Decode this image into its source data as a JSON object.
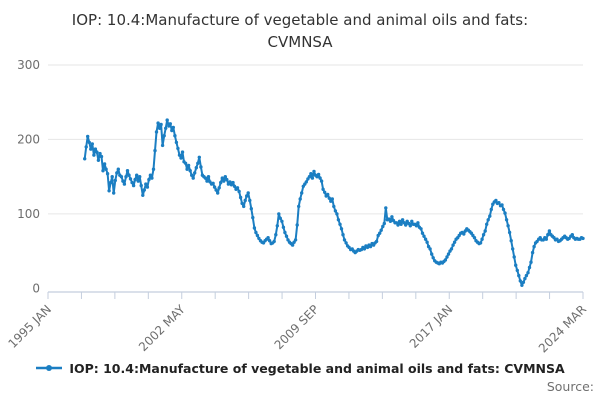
{
  "title": {
    "line1": "IOP: 10.4:Manufacture of vegetable and animal oils and fats:",
    "line2": "CVMNSA"
  },
  "legend": {
    "label": "IOP: 10.4:Manufacture of vegetable and animal oils and fats: CVMNSA",
    "marker": "line-with-dot"
  },
  "source": {
    "label": "Source:"
  },
  "colors": {
    "line": "#1b7ec2",
    "grid": "#e6e6e6",
    "axis": "#c4cede",
    "tick_label": "#6e6e6e",
    "background": "#ffffff"
  },
  "chart_data": {
    "type": "line",
    "title": "IOP: 10.4:Manufacture of vegetable and animal oils and fats: CVMNSA",
    "xlabel": "",
    "ylabel": "",
    "grid": "horizontal",
    "legend_position": "bottom",
    "x_axis": {
      "start_label": "1995 JAN",
      "end_label": "2024 MAR",
      "tick_labels": [
        "1995 JAN",
        "2002 MAY",
        "2009 SEP",
        "2017 JAN",
        "2024 MAR"
      ],
      "minor_tick_intervals": 16,
      "labels_every_nth_tick": 4,
      "axis_total_months": 350
    },
    "y_axis": {
      "ticks": [
        0,
        100,
        200,
        300
      ],
      "range": [
        0,
        300
      ]
    },
    "series": [
      {
        "name": "IOP: 10.4:Manufacture of vegetable and animal oils and fats: CVMNSA",
        "frequency": "monthly",
        "start": "1997 JAN",
        "end": "2024 MAR",
        "start_offset_months": 24,
        "marker": "dot",
        "values": [
          174,
          190,
          204,
          196,
          187,
          194,
          179,
          187,
          183,
          172,
          181,
          177,
          158,
          167,
          160,
          154,
          131,
          142,
          150,
          128,
          145,
          155,
          160,
          152,
          150,
          144,
          140,
          150,
          158,
          152,
          147,
          142,
          138,
          146,
          152,
          144,
          150,
          138,
          125,
          132,
          140,
          136,
          146,
          152,
          148,
          160,
          185,
          210,
          222,
          215,
          220,
          192,
          205,
          215,
          226,
          218,
          221,
          212,
          216,
          205,
          196,
          188,
          179,
          175,
          183,
          170,
          168,
          160,
          165,
          158,
          152,
          148,
          155,
          162,
          168,
          176,
          163,
          152,
          150,
          148,
          144,
          150,
          143,
          140,
          141,
          136,
          132,
          128,
          135,
          142,
          148,
          144,
          150,
          146,
          140,
          143,
          139,
          142,
          137,
          133,
          135,
          130,
          122,
          114,
          110,
          118,
          124,
          128,
          118,
          107,
          95,
          81,
          75,
          71,
          67,
          64,
          62,
          61,
          64,
          66,
          68,
          64,
          60,
          61,
          63,
          72,
          84,
          100,
          94,
          90,
          82,
          75,
          70,
          65,
          62,
          60,
          58,
          62,
          65,
          85,
          110,
          120,
          128,
          137,
          140,
          143,
          147,
          150,
          154,
          148,
          157,
          152,
          150,
          153,
          148,
          144,
          133,
          129,
          124,
          126,
          121,
          117,
          120,
          110,
          104,
          100,
          92,
          86,
          80,
          72,
          65,
          61,
          57,
          55,
          52,
          53,
          50,
          48,
          50,
          52,
          51,
          52,
          55,
          53,
          57,
          55,
          58,
          56,
          60,
          58,
          61,
          63,
          71,
          74,
          78,
          83,
          87,
          108,
          92,
          93,
          90,
          96,
          91,
          88,
          88,
          85,
          90,
          86,
          92,
          88,
          85,
          90,
          87,
          84,
          90,
          86,
          86,
          84,
          88,
          82,
          80,
          74,
          70,
          66,
          62,
          56,
          53,
          46,
          41,
          37,
          35,
          34,
          33,
          35,
          34,
          36,
          38,
          42,
          46,
          50,
          53,
          58,
          62,
          66,
          68,
          71,
          74,
          75,
          73,
          77,
          80,
          78,
          76,
          74,
          71,
          68,
          64,
          62,
          60,
          61,
          66,
          72,
          77,
          86,
          92,
          97,
          106,
          113,
          116,
          118,
          114,
          115,
          111,
          112,
          106,
          101,
          92,
          84,
          75,
          64,
          53,
          42,
          31,
          24,
          17,
          10,
          4,
          8,
          13,
          17,
          21,
          28,
          35,
          48,
          56,
          61,
          63,
          66,
          68,
          65,
          65,
          68,
          66,
          72,
          77,
          72,
          70,
          68,
          65,
          66,
          63,
          64,
          66,
          68,
          70,
          68,
          66,
          67,
          70,
          72,
          68,
          66,
          67,
          66,
          66,
          68,
          67
        ]
      }
    ]
  }
}
